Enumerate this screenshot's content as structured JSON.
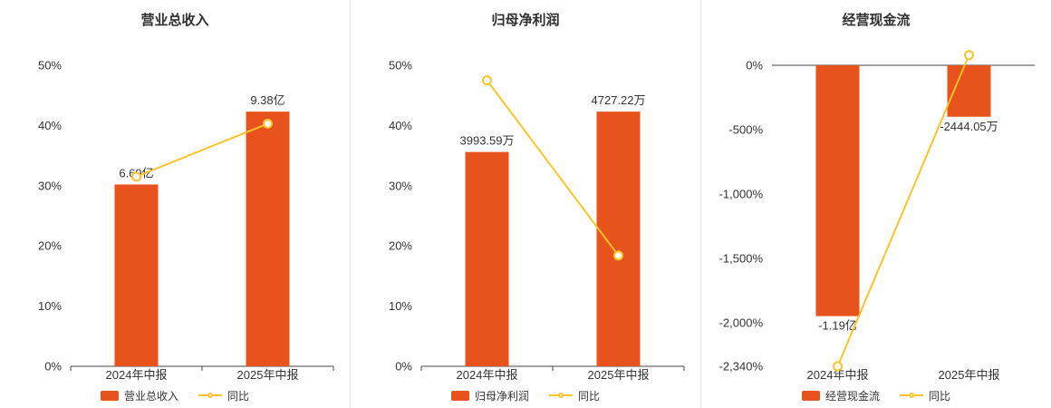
{
  "page": {
    "background": "#ffffff"
  },
  "colors": {
    "bar": "#e8521d",
    "line": "#fcc32a",
    "marker_fill": "#ffffff",
    "title_text": "#2f2f2f",
    "axis_text": "#333333",
    "axis_line": "#444444",
    "divider": "#e4e4e4"
  },
  "chart_data": [
    {
      "type": "bar+line",
      "title": "营业总收入",
      "categories": [
        "2024年中报",
        "2025年中报"
      ],
      "bar_series": {
        "name": "营业总收入",
        "display_values": [
          "6.69亿",
          "9.38亿"
        ],
        "plot_pct": [
          30.2,
          42.3
        ]
      },
      "line_series": {
        "name": "同比",
        "values_pct": [
          31.5,
          40.3
        ]
      },
      "axis": {
        "min": 0,
        "max": 50,
        "ticks": [
          {
            "value": 0,
            "label": "0%"
          },
          {
            "value": 10,
            "label": "10%"
          },
          {
            "value": 20,
            "label": "20%"
          },
          {
            "value": 30,
            "label": "30%"
          },
          {
            "value": 40,
            "label": "40%"
          },
          {
            "value": 50,
            "label": "50%"
          }
        ]
      },
      "legend_position": "bottom",
      "grid": false
    },
    {
      "type": "bar+line",
      "title": "归母净利润",
      "categories": [
        "2024年中报",
        "2025年中报"
      ],
      "bar_series": {
        "name": "归母净利润",
        "display_values": [
          "3993.59万",
          "4727.22万"
        ],
        "plot_pct": [
          35.6,
          42.3
        ]
      },
      "line_series": {
        "name": "同比",
        "values_pct": [
          47.5,
          18.4
        ]
      },
      "axis": {
        "min": 0,
        "max": 50,
        "ticks": [
          {
            "value": 0,
            "label": "0%"
          },
          {
            "value": 10,
            "label": "10%"
          },
          {
            "value": 20,
            "label": "20%"
          },
          {
            "value": 30,
            "label": "30%"
          },
          {
            "value": 40,
            "label": "40%"
          },
          {
            "value": 50,
            "label": "50%"
          }
        ]
      },
      "legend_position": "bottom",
      "grid": false
    },
    {
      "type": "bar+line",
      "title": "经营现金流",
      "categories": [
        "2024年中报",
        "2025年中报"
      ],
      "bar_series": {
        "name": "经营现金流",
        "display_values": [
          "-1.19亿",
          "-2444.05万"
        ],
        "plot_pct": [
          -1950,
          -400
        ]
      },
      "line_series": {
        "name": "同比",
        "values_pct": [
          -2340,
          79.5
        ]
      },
      "axis": {
        "min": -2340,
        "max": 0,
        "ticks": [
          {
            "value": 0,
            "label": "0%"
          },
          {
            "value": -500,
            "label": "-500%"
          },
          {
            "value": -1000,
            "label": "-1,000%"
          },
          {
            "value": -1500,
            "label": "-1,500%"
          },
          {
            "value": -2000,
            "label": "-2,000%"
          },
          {
            "value": -2340,
            "label": "-2,340%"
          }
        ]
      },
      "legend_position": "bottom",
      "grid": false
    }
  ]
}
